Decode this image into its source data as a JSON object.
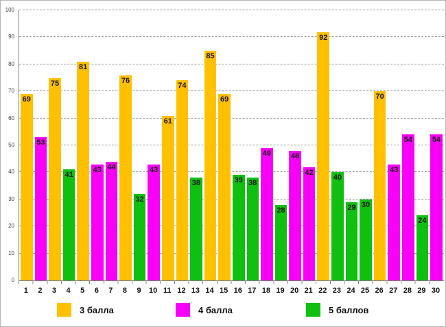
{
  "chart_data": {
    "type": "bar",
    "title": "",
    "xlabel": "",
    "ylabel": "",
    "categories": [
      "1",
      "2",
      "3",
      "4",
      "5",
      "6",
      "7",
      "8",
      "9",
      "10",
      "11",
      "12",
      "13",
      "14",
      "15",
      "16",
      "17",
      "18",
      "19",
      "20",
      "21",
      "22",
      "23",
      "24",
      "25",
      "26",
      "27",
      "28",
      "29",
      "30"
    ],
    "values": [
      69,
      53,
      75,
      41,
      81,
      43,
      44,
      76,
      32,
      43,
      61,
      74,
      38,
      85,
      69,
      39,
      38,
      49,
      28,
      48,
      42,
      92,
      40,
      29,
      30,
      70,
      43,
      54,
      24,
      54
    ],
    "scores": [
      "3",
      "4",
      "3",
      "5",
      "3",
      "4",
      "4",
      "3",
      "5",
      "4",
      "3",
      "3",
      "5",
      "3",
      "3",
      "5",
      "5",
      "4",
      "5",
      "4",
      "4",
      "3",
      "5",
      "5",
      "5",
      "3",
      "4",
      "4",
      "5",
      "4"
    ],
    "score_colors": {
      "3": "#FFC000",
      "4": "#F800F8",
      "5": "#10C010"
    },
    "ylim": [
      0,
      100
    ],
    "y_ticks": [
      0,
      10,
      20,
      30,
      40,
      50,
      60,
      70,
      80,
      90,
      100
    ],
    "grid": "horizontal-dashed",
    "legend_position": "bottom",
    "legend": [
      {
        "label": "3 балла",
        "score": "3",
        "color": "#FFC000"
      },
      {
        "label": "4 балла",
        "score": "4",
        "color": "#F800F8"
      },
      {
        "label": "5 баллов",
        "score": "5",
        "color": "#10C010"
      }
    ]
  }
}
